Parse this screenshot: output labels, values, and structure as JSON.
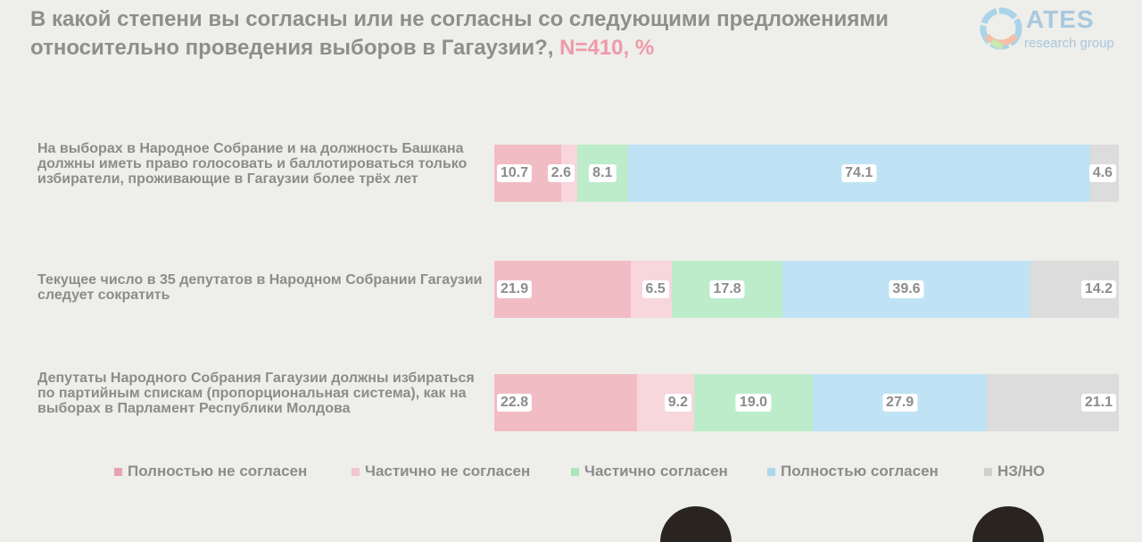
{
  "title": {
    "text": "В какой степени вы согласны или не согласны со следующими предложениями относительно проведения выборов в Гагаузии?,",
    "n_label": "N=410, %"
  },
  "logo": {
    "name": "ATES",
    "sub": "research group"
  },
  "chart_data": {
    "type": "bar",
    "orientation": "horizontal",
    "stacked": true,
    "percent_total": 100,
    "categories": [
      "На выборах в Народное Собрание и на должность Башкана должны иметь право голосовать и баллотироваться только избиратели, проживающие в Гагаузии более трёх лет",
      "Текущее число в 35 депутатов в Народном Собрании Гагаузии следует сократить",
      "Депутаты Народного Собрания Гагаузии должны избираться по партийным спискам (пропорциональная система), как на выборах в Парламент Республики Молдова"
    ],
    "series": [
      {
        "name": "Полностью не согласен",
        "color": "#f2bcc4",
        "values": [
          10.7,
          21.9,
          22.8
        ]
      },
      {
        "name": "Частично не согласен",
        "color": "#f7d6dc",
        "values": [
          2.6,
          6.5,
          9.2
        ]
      },
      {
        "name": "Частично согласен",
        "color": "#bdeccb",
        "values": [
          8.1,
          17.8,
          19.0
        ]
      },
      {
        "name": "Полностью согласен",
        "color": "#bfe3f4",
        "values": [
          74.1,
          39.6,
          27.9
        ]
      },
      {
        "name": "НЗ/НО",
        "color": "#dcdcdc",
        "values": [
          4.6,
          14.2,
          21.1
        ]
      }
    ],
    "labels": [
      [
        "10.7",
        "2.6",
        "8.1",
        "74.1",
        "4.6"
      ],
      [
        "21.9",
        "6.5",
        "17.8",
        "39.6",
        "14.2"
      ],
      [
        "22.8",
        "9.2",
        "19.0",
        "27.9",
        "21.1"
      ]
    ],
    "label_align": [
      "left",
      "right",
      "center",
      "center",
      "right"
    ],
    "legend_position": "bottom"
  }
}
